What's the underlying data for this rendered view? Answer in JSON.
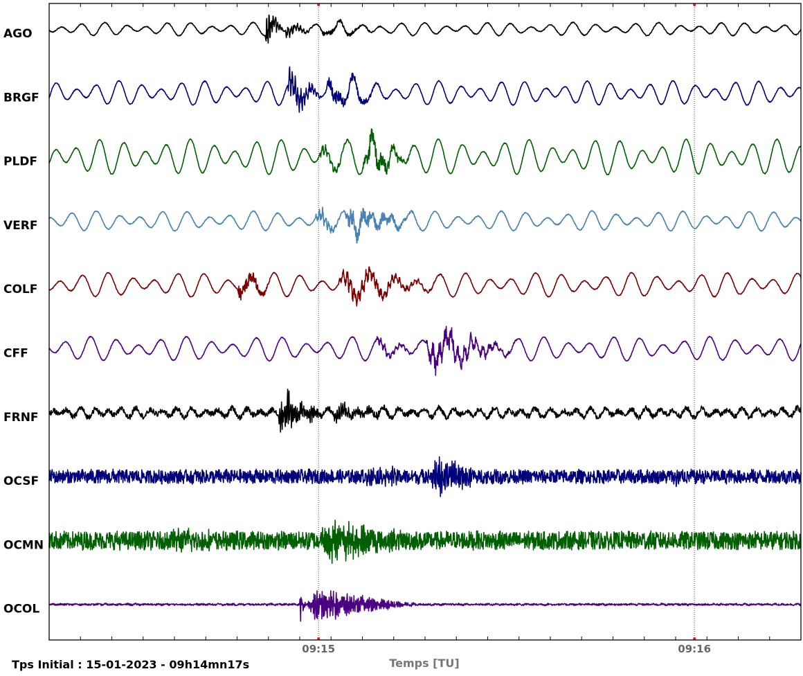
{
  "chart_data": {
    "type": "line",
    "title": "",
    "xlabel": "Temps [TU]",
    "ylabel": "",
    "x_unit": "seconds after 09:14:17 TU",
    "xlim": [
      0,
      120
    ],
    "x_ticks": [
      {
        "t": 43,
        "label": "09:15"
      },
      {
        "t": 103,
        "label": "09:16"
      }
    ],
    "grid": "vertical dotted lines at labeled ticks",
    "start_time_text": "Tps Initial : 15-01-2023 - 09h14mn17s",
    "series": [
      {
        "name": "AGO",
        "color": "#000000",
        "base_amp": 0.3,
        "noise": 0.02,
        "period": 3.4,
        "events": [
          {
            "t0": 34.5,
            "t1": 37.5,
            "amp": 1.2,
            "period": 0.35
          },
          {
            "t0": 37.5,
            "t1": 43,
            "amp": 0.35,
            "period": 0.5
          },
          {
            "t0": 43,
            "t1": 55,
            "amp": 0.25,
            "period": 2.0
          }
        ]
      },
      {
        "name": "BRGF",
        "color": "#00007b",
        "base_amp": 0.55,
        "noise": 0.02,
        "period": 3.4,
        "events": [
          {
            "t0": 38,
            "t1": 44,
            "amp": 1.0,
            "period": 0.45
          },
          {
            "t0": 44,
            "t1": 55,
            "amp": 0.7,
            "period": 2.0
          }
        ]
      },
      {
        "name": "PLDF",
        "color": "#005f00",
        "base_amp": 0.8,
        "noise": 0.02,
        "period": 3.6,
        "events": [
          {
            "t0": 43,
            "t1": 50,
            "amp": 0.3,
            "period": 0.5
          },
          {
            "t0": 50,
            "t1": 59,
            "amp": 1.1,
            "period": 1.6
          }
        ]
      },
      {
        "name": "VERF",
        "color": "#4682b4",
        "base_amp": 0.45,
        "noise": 0.02,
        "period": 3.6,
        "events": [
          {
            "t0": 42.5,
            "t1": 47,
            "amp": 0.6,
            "period": 0.5
          },
          {
            "t0": 47,
            "t1": 60,
            "amp": 0.9,
            "period": 1.6
          }
        ]
      },
      {
        "name": "COLF",
        "color": "#7b0000",
        "base_amp": 0.55,
        "noise": 0.02,
        "period": 3.8,
        "events": [
          {
            "t0": 30,
            "t1": 36,
            "amp": 0.9,
            "period": 4.0
          },
          {
            "t0": 46,
            "t1": 64,
            "amp": 0.6,
            "period": 0.6
          }
        ]
      },
      {
        "name": "CFF",
        "color": "#4b0082",
        "base_amp": 0.55,
        "noise": 0.02,
        "period": 3.8,
        "events": [
          {
            "t0": 52,
            "t1": 60,
            "amp": 0.3,
            "period": 0.6
          },
          {
            "t0": 60,
            "t1": 76,
            "amp": 1.0,
            "period": 1.0
          }
        ]
      },
      {
        "name": "FRNF",
        "color": "#000000",
        "base_amp": 0.22,
        "noise": 0.12,
        "period": 2.2,
        "events": [
          {
            "t0": 36.5,
            "t1": 45,
            "amp": 1.2,
            "period": 0.25
          },
          {
            "t0": 45,
            "t1": 56,
            "amp": 0.35,
            "period": 0.3
          }
        ]
      },
      {
        "name": "OCSF",
        "color": "#00007b",
        "base_amp": 0.05,
        "noise": 0.3,
        "period": 1.2,
        "events": [
          {
            "t0": 50,
            "t1": 60,
            "amp": 0.45,
            "period": 0.25
          },
          {
            "t0": 61,
            "t1": 70,
            "amp": 1.1,
            "period": 0.25
          },
          {
            "t0": 100,
            "t1": 101.2,
            "amp": 0.8,
            "period": 0.3
          }
        ]
      },
      {
        "name": "OCMN",
        "color": "#005f00",
        "base_amp": 0.05,
        "noise": 0.4,
        "period": 1.2,
        "events": [
          {
            "t0": 43,
            "t1": 60,
            "amp": 0.9,
            "period": 0.2
          },
          {
            "t0": 18,
            "t1": 32,
            "amp": 0.4,
            "period": 0.2
          }
        ]
      },
      {
        "name": "OCOL",
        "color": "#4b0082",
        "base_amp": 0.02,
        "noise": 0.04,
        "period": 1.2,
        "events": [
          {
            "t0": 40,
            "t1": 41,
            "amp": 1.2,
            "period": 0.2
          },
          {
            "t0": 41,
            "t1": 60,
            "amp": 0.9,
            "period": 0.22
          }
        ]
      }
    ]
  }
}
